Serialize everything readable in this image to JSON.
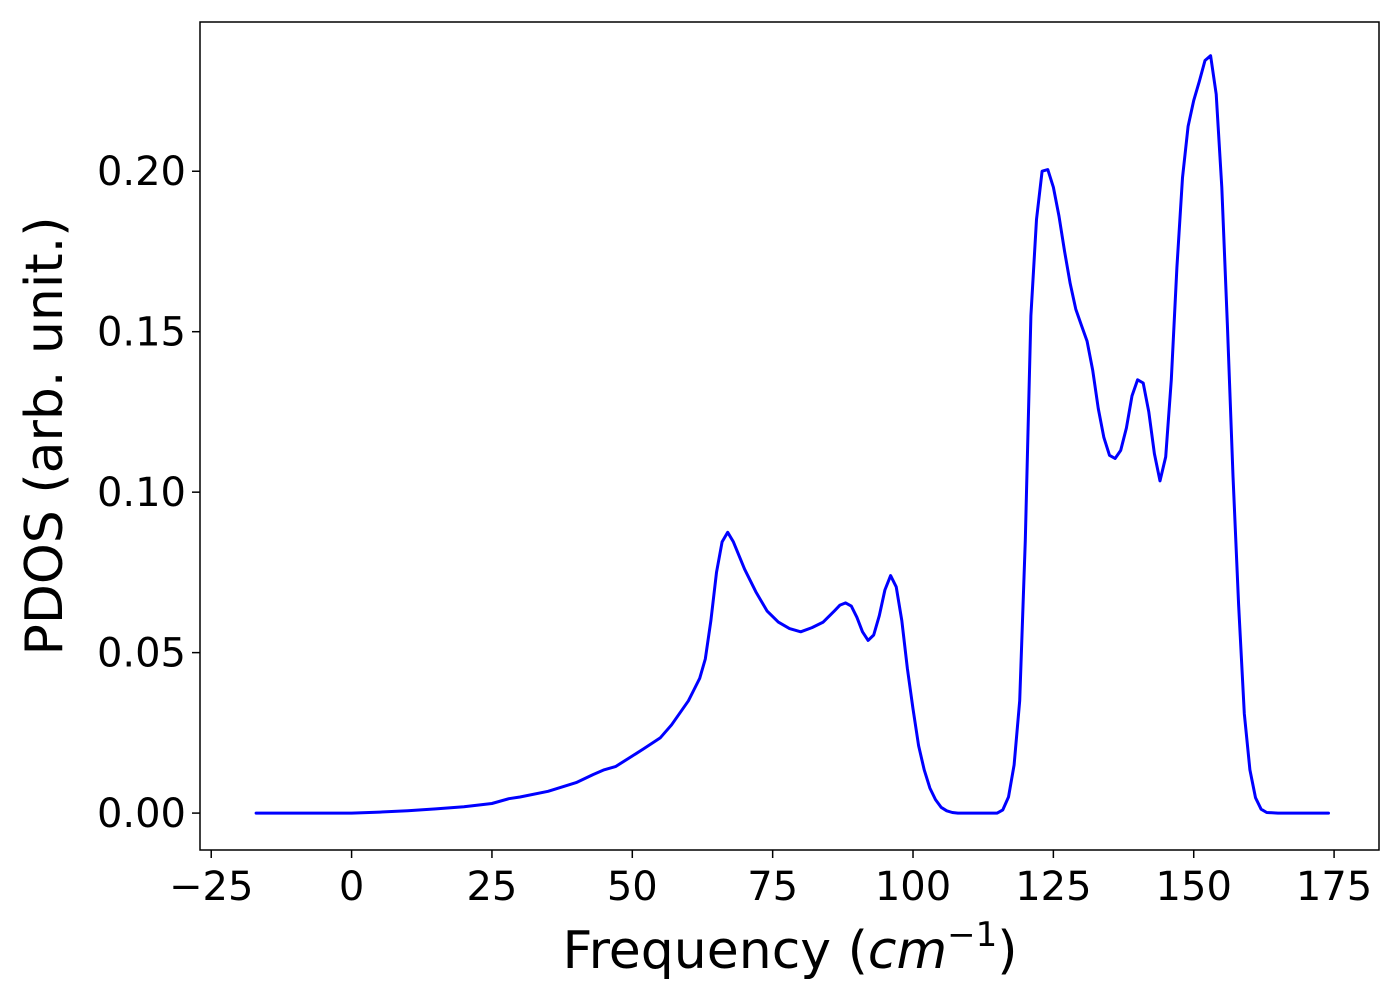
{
  "chart_data": {
    "type": "line",
    "title": "",
    "xlabel": {
      "prefix": "Frequency (",
      "unit_base": "cm",
      "unit_exponent": "−1",
      "suffix": ")"
    },
    "ylabel": "PDOS (arb. unit.)",
    "xlim": [
      -27,
      183
    ],
    "ylim": [
      -0.0115,
      0.2465
    ],
    "x_ticks": [
      -25,
      0,
      25,
      50,
      75,
      100,
      125,
      150,
      175
    ],
    "x_tick_labels": [
      "−25",
      "0",
      "25",
      "50",
      "75",
      "100",
      "125",
      "150",
      "175"
    ],
    "y_ticks": [
      0.0,
      0.05,
      0.1,
      0.15,
      0.2
    ],
    "y_tick_labels": [
      "0.00",
      "0.05",
      "0.10",
      "0.15",
      "0.20"
    ],
    "grid": false,
    "legend": "none",
    "series": [
      {
        "color": "#0000ff",
        "x": [
          -17,
          -10,
          0,
          5,
          10,
          15,
          20,
          25,
          28,
          30,
          35,
          40,
          43,
          45,
          47,
          50,
          52,
          55,
          57,
          59,
          60,
          61,
          62,
          63,
          64,
          65,
          66,
          67,
          68,
          70,
          72,
          74,
          76,
          78,
          80,
          82,
          84,
          86,
          87,
          88,
          89,
          90,
          91,
          92,
          93,
          94,
          95,
          96,
          97,
          98,
          99,
          100,
          101,
          102,
          103,
          104,
          105,
          106,
          107,
          108,
          110,
          112,
          114,
          115,
          116,
          117,
          118,
          119,
          120,
          121,
          122,
          123,
          124,
          125,
          126,
          127,
          128,
          129,
          130,
          131,
          132,
          133,
          134,
          135,
          136,
          137,
          138,
          139,
          140,
          141,
          142,
          143,
          144,
          145,
          146,
          147,
          148,
          149,
          150,
          151,
          152,
          153,
          154,
          155,
          156,
          157,
          158,
          159,
          160,
          161,
          162,
          163,
          165,
          168,
          174
        ],
        "y": [
          0.0,
          0.0,
          0.0,
          0.0003,
          0.0007,
          0.0013,
          0.002,
          0.003,
          0.0045,
          0.005,
          0.0068,
          0.0095,
          0.012,
          0.0135,
          0.0145,
          0.0178,
          0.02,
          0.0235,
          0.0275,
          0.0325,
          0.035,
          0.0385,
          0.042,
          0.048,
          0.06,
          0.075,
          0.0845,
          0.0875,
          0.0845,
          0.076,
          0.069,
          0.063,
          0.0595,
          0.0575,
          0.0565,
          0.0578,
          0.0595,
          0.063,
          0.0648,
          0.0655,
          0.0645,
          0.061,
          0.0565,
          0.0538,
          0.0555,
          0.0615,
          0.0695,
          0.074,
          0.0705,
          0.06,
          0.045,
          0.0325,
          0.021,
          0.0135,
          0.0078,
          0.0042,
          0.0018,
          0.0007,
          0.0002,
          0.0,
          0.0,
          0.0,
          0.0,
          0.0,
          0.001,
          0.005,
          0.015,
          0.035,
          0.085,
          0.155,
          0.185,
          0.2,
          0.2005,
          0.195,
          0.186,
          0.175,
          0.165,
          0.157,
          0.152,
          0.147,
          0.138,
          0.126,
          0.117,
          0.1115,
          0.1105,
          0.113,
          0.12,
          0.13,
          0.135,
          0.134,
          0.125,
          0.112,
          0.1035,
          0.111,
          0.135,
          0.17,
          0.198,
          0.214,
          0.222,
          0.228,
          0.2345,
          0.236,
          0.224,
          0.195,
          0.152,
          0.105,
          0.065,
          0.031,
          0.0135,
          0.0048,
          0.0012,
          0.0002,
          0.0,
          0.0,
          0.0
        ]
      }
    ]
  }
}
